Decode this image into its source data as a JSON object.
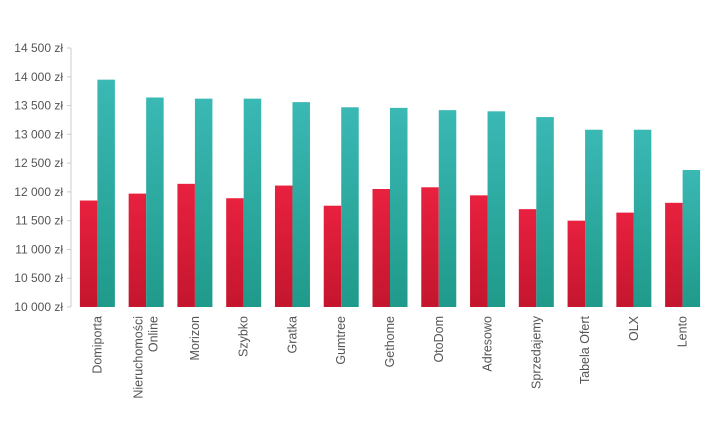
{
  "chart_data": {
    "type": "bar",
    "title": "",
    "xlabel": "",
    "ylabel": "",
    "ylim": [
      10000,
      14500
    ],
    "grid": false,
    "y_ticks": [
      "10 000 zł",
      "10 500 zł",
      "11 000 zł",
      "11 500 zł",
      "12 000 zł",
      "12 500 zł",
      "13 000 zł",
      "13 500 zł",
      "14 000 zł",
      "14 500 zł"
    ],
    "categories": [
      [
        "Domiporta"
      ],
      [
        "Nieruchomości",
        "Online"
      ],
      [
        "Morizon"
      ],
      [
        "Szybko"
      ],
      [
        "Gratka"
      ],
      [
        "Gumtree"
      ],
      [
        "Gethome"
      ],
      [
        "OtoDom"
      ],
      [
        "Adresowo"
      ],
      [
        "Sprzedajemy"
      ],
      [
        "Tabela Ofert"
      ],
      [
        "OLX"
      ],
      [
        "Lento"
      ]
    ],
    "series": [
      {
        "values": [
          11850,
          11970,
          12140,
          11890,
          12110,
          11760,
          12050,
          12080,
          11940,
          11700,
          11500,
          11640,
          11810
        ],
        "color_top": "#e8213f",
        "color_bottom": "#c4162e"
      },
      {
        "values": [
          13950,
          13640,
          13620,
          13620,
          13560,
          13470,
          13460,
          13420,
          13400,
          13300,
          13080,
          13080,
          12380
        ],
        "color_top": "#3ab8b4",
        "color_bottom": "#1f9a8a"
      }
    ]
  }
}
